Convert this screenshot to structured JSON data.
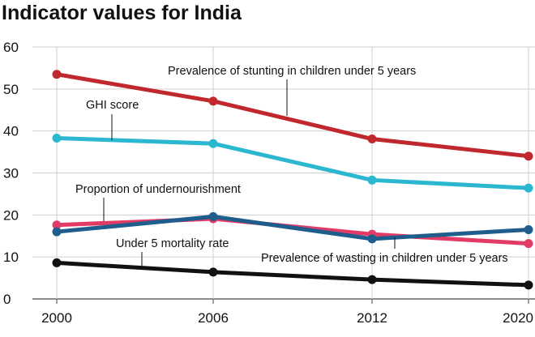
{
  "chart_data": {
    "type": "line",
    "title": "Indicator values for India",
    "xlabel": "",
    "ylabel": "",
    "x": [
      2000,
      2006,
      2012,
      2020
    ],
    "x_tick_labels": [
      "2000",
      "2006",
      "2012",
      "2020"
    ],
    "ylim": [
      0,
      60
    ],
    "y_ticks": [
      0,
      10,
      20,
      30,
      40,
      50,
      60
    ],
    "y_tick_labels": [
      "0",
      "10",
      "20",
      "30",
      "40",
      "50",
      "60"
    ],
    "grid": true,
    "legend": "none (series labelled by callout annotations)",
    "series": [
      {
        "name": "Prevalence of stunting in children under 5 years",
        "color": "#c0282d",
        "values": [
          53.5,
          47.1,
          38.1,
          34.0
        ]
      },
      {
        "name": "GHI score",
        "color": "#2bb7cf",
        "values": [
          38.3,
          37.0,
          28.3,
          26.4
        ]
      },
      {
        "name": "Proportion of undernourishment",
        "color": "#e23b66",
        "values": [
          17.6,
          19.1,
          15.4,
          13.2
        ]
      },
      {
        "name": "Prevalence of wasting in children under 5 years",
        "color": "#1f5e8c",
        "values": [
          16.0,
          19.6,
          14.3,
          16.5
        ]
      },
      {
        "name": "Under 5 mortality rate",
        "color": "#111111",
        "values": [
          8.6,
          6.4,
          4.6,
          3.3
        ]
      }
    ]
  }
}
